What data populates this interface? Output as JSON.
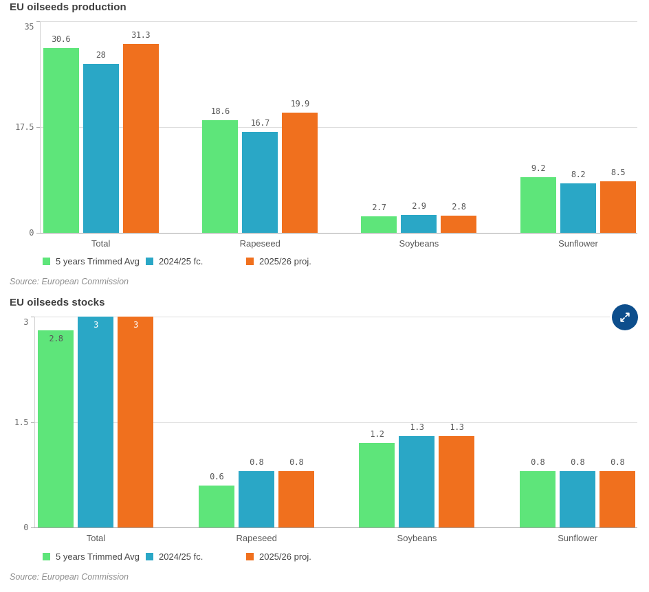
{
  "page": {
    "background": "#ffffff"
  },
  "expand_button": {
    "color": "#0d4e8c",
    "icon": "expand-arrows"
  },
  "chart_data": [
    {
      "type": "bar",
      "title": "EU oilseeds production",
      "source": "Source: European Commission",
      "categories": [
        "Total",
        "Rapeseed",
        "Soybeans",
        "Sunflower"
      ],
      "series": [
        {
          "name": "5 years Trimmed Avg",
          "color": "#5ee57a",
          "inside_label_color": "#595959",
          "values": [
            30.6,
            18.6,
            2.7,
            9.2
          ]
        },
        {
          "name": "2024/25 fc.",
          "color": "#2aa7c6",
          "inside_label_color": "#ffffff",
          "values": [
            28,
            16.7,
            2.9,
            8.2
          ]
        },
        {
          "name": "2025/26 proj.",
          "color": "#f0701e",
          "inside_label_color": "#ffffff",
          "values": [
            31.3,
            19.9,
            2.8,
            8.5
          ]
        }
      ],
      "xlabel": "",
      "ylabel": "",
      "ylim": [
        0,
        35
      ],
      "yticks": [
        0,
        17.5,
        35
      ],
      "grid": true,
      "legend_position": "bottom"
    },
    {
      "type": "bar",
      "title": "EU oilseeds stocks",
      "source": "Source: European Commission",
      "categories": [
        "Total",
        "Rapeseed",
        "Soybeans",
        "Sunflower"
      ],
      "series": [
        {
          "name": "5 years Trimmed Avg",
          "color": "#5ee57a",
          "inside_label_color": "#595959",
          "values": [
            2.8,
            0.6,
            1.2,
            0.8
          ]
        },
        {
          "name": "2024/25 fc.",
          "color": "#2aa7c6",
          "inside_label_color": "#ffffff",
          "values": [
            3,
            0.8,
            1.3,
            0.8
          ]
        },
        {
          "name": "2025/26 proj.",
          "color": "#f0701e",
          "inside_label_color": "#ffffff",
          "values": [
            3,
            0.8,
            1.3,
            0.8
          ]
        }
      ],
      "xlabel": "",
      "ylabel": "",
      "ylim": [
        0,
        3
      ],
      "yticks": [
        0,
        1.5,
        3
      ],
      "grid": true,
      "legend_position": "bottom"
    }
  ]
}
